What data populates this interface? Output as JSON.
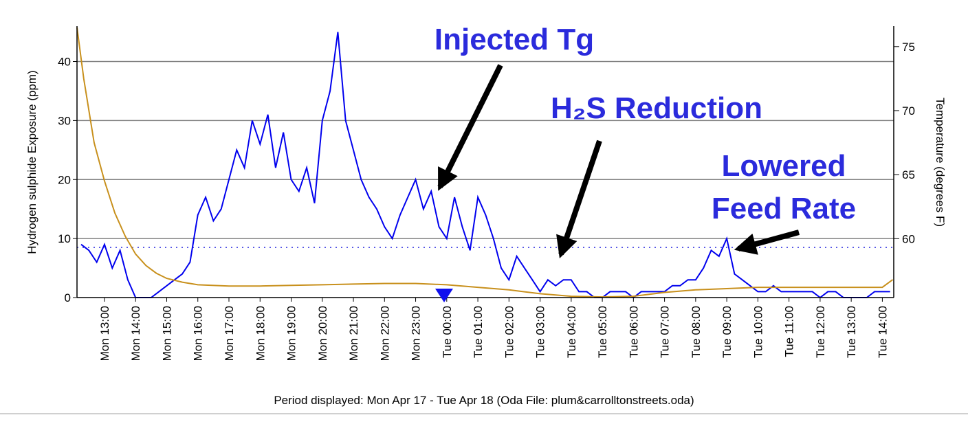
{
  "chart_data": {
    "type": "line",
    "ylabel": "Hydrogen sulphide Exposure (ppm)",
    "y2label": "Temperature (degrees F)",
    "footer": "Period displayed: Mon Apr 17 - Tue Apr 18  (Oda File: plum&carrolltonstreets.oda)",
    "annotations": [
      {
        "lines": [
          "Injected Tg"
        ]
      },
      {
        "lines": [
          "H₂S Reduction"
        ]
      },
      {
        "lines": [
          "Lowered",
          "Feed Rate"
        ]
      }
    ],
    "xlim": [
      "Mon 12:07",
      "Tue 14:22"
    ],
    "xticks": [
      "Mon 13:00",
      "Mon 14:00",
      "Mon 15:00",
      "Mon 16:00",
      "Mon 17:00",
      "Mon 18:00",
      "Mon 19:00",
      "Mon 20:00",
      "Mon 21:00",
      "Mon 22:00",
      "Mon 23:00",
      "Tue 00:00",
      "Tue 01:00",
      "Tue 02:00",
      "Tue 03:00",
      "Tue 04:00",
      "Tue 05:00",
      "Tue 06:00",
      "Tue 07:00",
      "Tue 08:00",
      "Tue 09:00",
      "Tue 10:00",
      "Tue 11:00",
      "Tue 12:00",
      "Tue 13:00",
      "Tue 14:00"
    ],
    "ylim": [
      0,
      46
    ],
    "yticks": [
      0,
      10,
      20,
      30,
      40
    ],
    "y2lim": [
      55.4,
      76.6
    ],
    "y2ticks": [
      60,
      65,
      70,
      75
    ],
    "grid": true,
    "threshold_line": {
      "value": 8.5,
      "color": "#2222dd"
    },
    "series": [
      {
        "color": "#0000ee",
        "axis": "y",
        "x": [
          "Mon 12:15",
          "Mon 12:30",
          "Mon 12:45",
          "Mon 13:00",
          "Mon 13:15",
          "Mon 13:30",
          "Mon 13:45",
          "Mon 14:00",
          "Mon 14:15",
          "Mon 14:30",
          "Mon 14:45",
          "Mon 15:00",
          "Mon 15:15",
          "Mon 15:30",
          "Mon 15:45",
          "Mon 16:00",
          "Mon 16:15",
          "Mon 16:30",
          "Mon 16:45",
          "Mon 17:00",
          "Mon 17:15",
          "Mon 17:30",
          "Mon 17:45",
          "Mon 18:00",
          "Mon 18:15",
          "Mon 18:30",
          "Mon 18:45",
          "Mon 19:00",
          "Mon 19:15",
          "Mon 19:30",
          "Mon 19:45",
          "Mon 20:00",
          "Mon 20:15",
          "Mon 20:30",
          "Mon 20:45",
          "Mon 21:00",
          "Mon 21:15",
          "Mon 21:30",
          "Mon 21:45",
          "Mon 22:00",
          "Mon 22:15",
          "Mon 22:30",
          "Mon 22:45",
          "Mon 23:00",
          "Mon 23:15",
          "Mon 23:30",
          "Mon 23:45",
          "Tue 00:00",
          "Tue 00:15",
          "Tue 00:30",
          "Tue 00:45",
          "Tue 01:00",
          "Tue 01:15",
          "Tue 01:30",
          "Tue 01:45",
          "Tue 02:00",
          "Tue 02:15",
          "Tue 02:30",
          "Tue 02:45",
          "Tue 03:00",
          "Tue 03:15",
          "Tue 03:30",
          "Tue 03:45",
          "Tue 04:00",
          "Tue 04:15",
          "Tue 04:30",
          "Tue 04:45",
          "Tue 05:00",
          "Tue 05:15",
          "Tue 05:30",
          "Tue 05:45",
          "Tue 06:00",
          "Tue 06:15",
          "Tue 06:30",
          "Tue 06:45",
          "Tue 07:00",
          "Tue 07:15",
          "Tue 07:30",
          "Tue 07:45",
          "Tue 08:00",
          "Tue 08:15",
          "Tue 08:30",
          "Tue 08:45",
          "Tue 09:00",
          "Tue 09:15",
          "Tue 09:30",
          "Tue 09:45",
          "Tue 10:00",
          "Tue 10:15",
          "Tue 10:30",
          "Tue 10:45",
          "Tue 11:00",
          "Tue 11:15",
          "Tue 11:30",
          "Tue 11:45",
          "Tue 12:00",
          "Tue 12:15",
          "Tue 12:30",
          "Tue 12:45",
          "Tue 13:00",
          "Tue 13:15",
          "Tue 13:30",
          "Tue 13:45",
          "Tue 14:00",
          "Tue 14:15"
        ],
        "values": [
          9,
          8,
          6,
          9,
          5,
          8,
          3,
          0,
          0,
          0,
          1,
          2,
          3,
          4,
          6,
          14,
          17,
          13,
          15,
          20,
          25,
          22,
          30,
          26,
          31,
          22,
          28,
          20,
          18,
          22,
          16,
          30,
          35,
          45,
          30,
          25,
          20,
          17,
          15,
          12,
          10,
          14,
          17,
          20,
          15,
          18,
          12,
          10,
          17,
          12,
          8,
          17,
          14,
          10,
          5,
          3,
          7,
          5,
          3,
          1,
          3,
          2,
          3,
          3,
          1,
          1,
          0,
          0,
          1,
          1,
          1,
          0,
          1,
          1,
          1,
          1,
          2,
          2,
          3,
          3,
          5,
          8,
          7,
          10,
          4,
          3,
          2,
          1,
          1,
          2,
          1,
          1,
          1,
          1,
          1,
          0,
          1,
          1,
          0,
          0,
          0,
          0,
          1,
          1,
          1
        ]
      },
      {
        "color": "#c8901c",
        "axis": "y2",
        "x": [
          "Mon 12:07",
          "Mon 12:20",
          "Mon 12:40",
          "Mon 13:00",
          "Mon 13:20",
          "Mon 13:40",
          "Mon 14:00",
          "Mon 14:20",
          "Mon 14:40",
          "Mon 15:00",
          "Mon 15:30",
          "Mon 16:00",
          "Mon 17:00",
          "Mon 18:00",
          "Mon 19:00",
          "Mon 20:00",
          "Mon 21:00",
          "Mon 22:00",
          "Mon 23:00",
          "Tue 00:00",
          "Tue 01:00",
          "Tue 02:00",
          "Tue 03:00",
          "Tue 04:00",
          "Tue 05:00",
          "Tue 06:00",
          "Tue 07:00",
          "Tue 08:00",
          "Tue 09:00",
          "Tue 10:00",
          "Tue 11:00",
          "Tue 12:00",
          "Tue 13:00",
          "Tue 14:00",
          "Tue 14:20"
        ],
        "values": [
          76.5,
          72.5,
          67.5,
          64.5,
          62,
          60.2,
          58.8,
          57.9,
          57.3,
          56.9,
          56.6,
          56.4,
          56.3,
          56.3,
          56.35,
          56.4,
          56.45,
          56.5,
          56.5,
          56.4,
          56.2,
          56.0,
          55.7,
          55.5,
          55.45,
          55.5,
          55.8,
          56.0,
          56.1,
          56.2,
          56.2,
          56.2,
          56.2,
          56.2,
          56.8
        ]
      }
    ]
  }
}
